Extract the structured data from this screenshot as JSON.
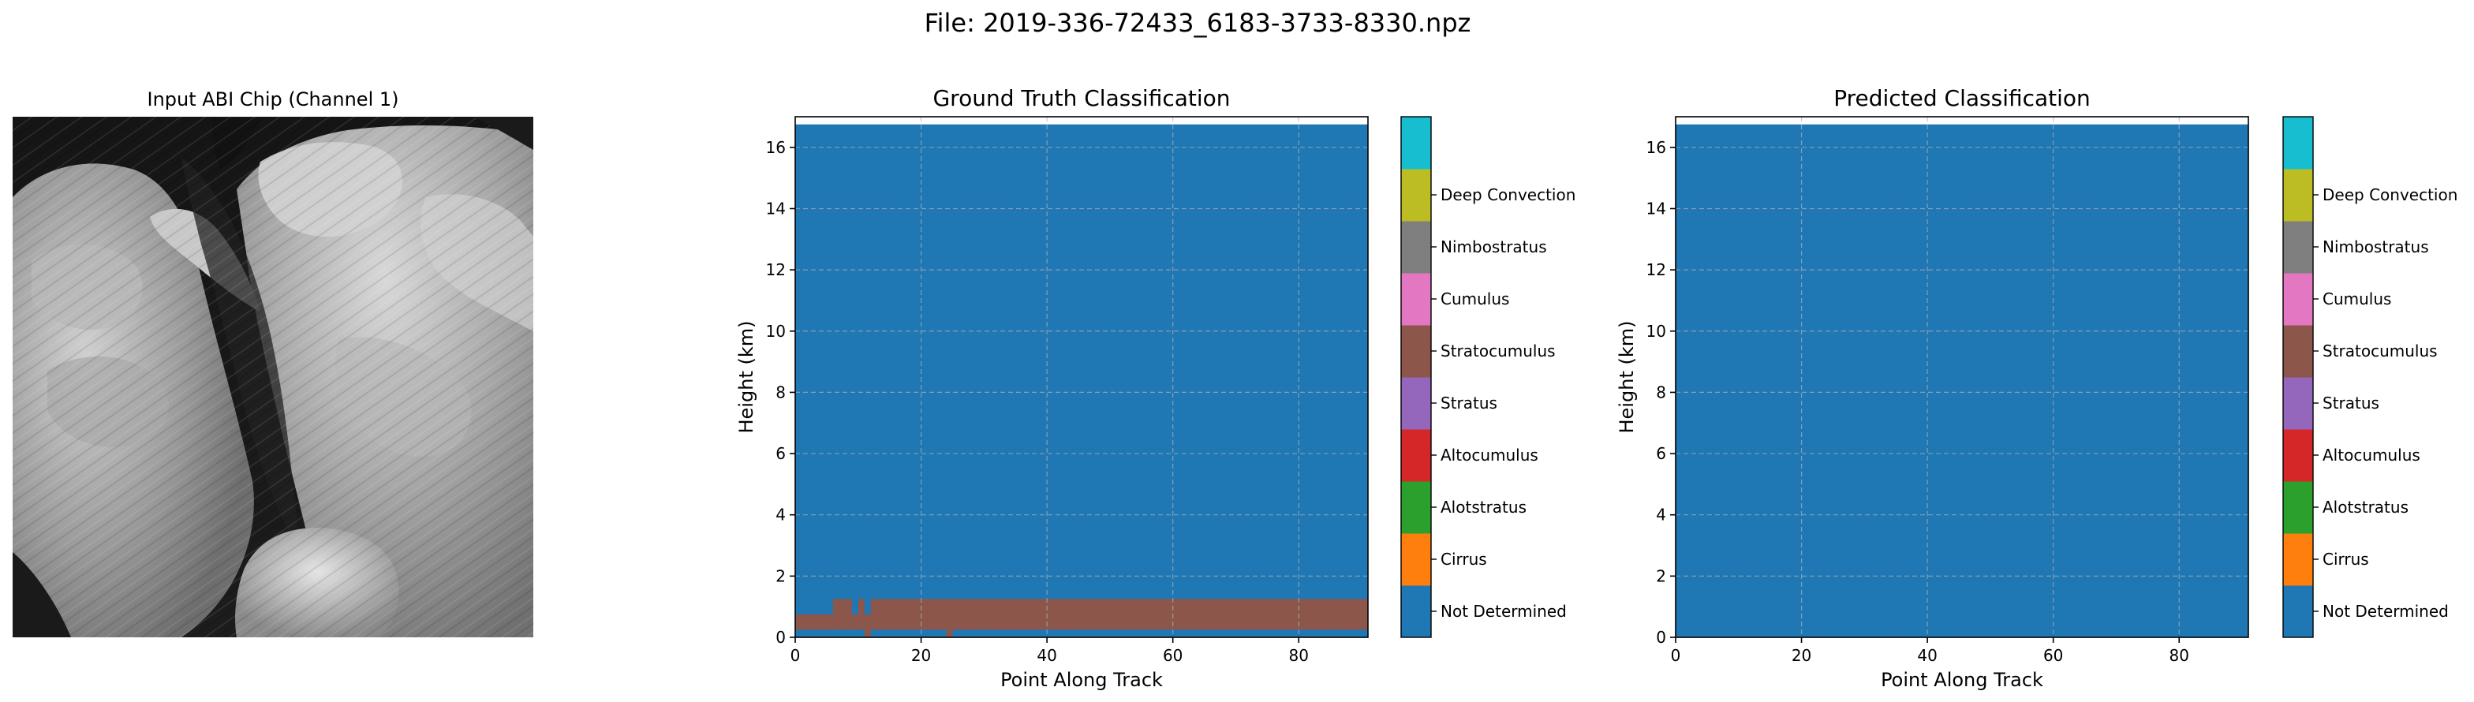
{
  "figure": {
    "suptitle": "File: 2019-336-72433_6183-3733-8330.npz"
  },
  "image_panel": {
    "title": "Input ABI Chip (Channel 1)",
    "colormap": "grayscale"
  },
  "classes": [
    {
      "name": "Not Determined",
      "color": "#1f77b4"
    },
    {
      "name": "Cirrus",
      "color": "#ff7f0e"
    },
    {
      "name": "Alotstratus",
      "color": "#2ca02c"
    },
    {
      "name": "Altocumulus",
      "color": "#d62728"
    },
    {
      "name": "Stratus",
      "color": "#9467bd"
    },
    {
      "name": "Stratocumulus",
      "color": "#8c564b"
    },
    {
      "name": "Cumulus",
      "color": "#e377c2"
    },
    {
      "name": "Nimbostratus",
      "color": "#7f7f7f"
    },
    {
      "name": "Deep Convection",
      "color": "#bcbd22"
    },
    {
      "name": "",
      "color": "#17becf"
    }
  ],
  "legend_labels": [
    "Not Determined",
    "Cirrus",
    "Alotstratus",
    "Altocumulus",
    "Stratus",
    "Stratocumulus",
    "Cumulus",
    "Nimbostratus",
    "Deep Convection"
  ],
  "chart_data": [
    {
      "type": "heatmap",
      "title": "Ground Truth Classification",
      "xlabel": "Point Along Track",
      "ylabel": "Height (km)",
      "xlim": [
        0,
        91
      ],
      "ylim": [
        0,
        17
      ],
      "data_top_km": 16.75,
      "xticks": [
        0,
        20,
        40,
        60,
        80
      ],
      "yticks": [
        0,
        2,
        4,
        6,
        8,
        10,
        12,
        14,
        16
      ],
      "grid": true,
      "background_class": "Not Determined",
      "layers": [
        {
          "class": "Stratocumulus",
          "x_start": 0,
          "x_end": 6,
          "y_bottom": 0.25,
          "y_top": 0.75
        },
        {
          "class": "Stratocumulus",
          "x_start": 6,
          "x_end": 9,
          "y_bottom": 0.25,
          "y_top": 1.25
        },
        {
          "class": "Stratocumulus",
          "x_start": 9,
          "x_end": 10,
          "y_bottom": 0.25,
          "y_top": 0.75
        },
        {
          "class": "Stratocumulus",
          "x_start": 10,
          "x_end": 11,
          "y_bottom": 0.25,
          "y_top": 1.25
        },
        {
          "class": "Stratocumulus",
          "x_start": 11,
          "x_end": 12,
          "y_bottom": 0.0,
          "y_top": 0.75
        },
        {
          "class": "Stratocumulus",
          "x_start": 12,
          "x_end": 91,
          "y_bottom": 0.25,
          "y_top": 1.25
        },
        {
          "class": "Stratocumulus",
          "x_start": 24,
          "x_end": 25,
          "y_bottom": 0.0,
          "y_top": 0.25
        }
      ]
    },
    {
      "type": "heatmap",
      "title": "Predicted Classification",
      "xlabel": "Point Along Track",
      "ylabel": "Height (km)",
      "xlim": [
        0,
        91
      ],
      "ylim": [
        0,
        17
      ],
      "data_top_km": 16.75,
      "xticks": [
        0,
        20,
        40,
        60,
        80
      ],
      "yticks": [
        0,
        2,
        4,
        6,
        8,
        10,
        12,
        14,
        16
      ],
      "grid": true,
      "background_class": "Not Determined",
      "layers": []
    }
  ]
}
